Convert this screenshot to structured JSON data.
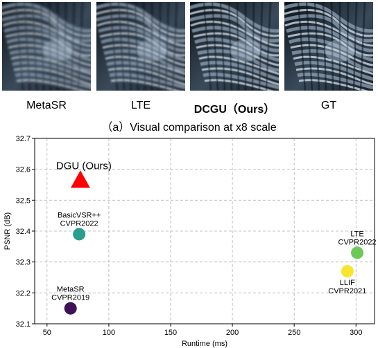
{
  "comparison": {
    "methods": [
      {
        "label": "MetaSR",
        "bold": false
      },
      {
        "label": "LTE",
        "bold": false
      },
      {
        "label": "DCGU（Ours）",
        "bold": true
      },
      {
        "label": "GT",
        "bold": false
      }
    ],
    "caption": "（a）Visual comparison at x8 scale"
  },
  "chart_data": {
    "type": "scatter",
    "title": "",
    "xlabel": "Runtime (ms)",
    "ylabel": "PSNR (dB)",
    "xlim": [
      40,
      315
    ],
    "ylim": [
      32.1,
      32.7
    ],
    "xticks": [
      50,
      100,
      150,
      200,
      250,
      300
    ],
    "yticks": [
      32.1,
      32.2,
      32.3,
      32.4,
      32.5,
      32.6,
      32.7
    ],
    "grid": true,
    "points": [
      {
        "name": "DGU (Ours)",
        "x": 77,
        "y": 32.565,
        "marker": "triangle",
        "color": "#ff0000",
        "labels": [
          "DGU (Ours)"
        ]
      },
      {
        "name": "BasicVSR++",
        "x": 76,
        "y": 32.39,
        "marker": "circle",
        "color": "#2a9d8c",
        "labels": [
          "BasicVSR++",
          "CVPR2022"
        ]
      },
      {
        "name": "MetaSR",
        "x": 69,
        "y": 32.15,
        "marker": "circle",
        "color": "#3e1255",
        "labels": [
          "MetaSR",
          "CVPR2019"
        ]
      },
      {
        "name": "LTE",
        "x": 301,
        "y": 32.33,
        "marker": "circle",
        "color": "#6dc957",
        "labels": [
          "LTE",
          "CVPR2022"
        ]
      },
      {
        "name": "LLIF",
        "x": 293,
        "y": 32.27,
        "marker": "circle",
        "color": "#f7e62d",
        "labels": [
          "LLIF",
          "CVPR2021"
        ]
      }
    ]
  }
}
